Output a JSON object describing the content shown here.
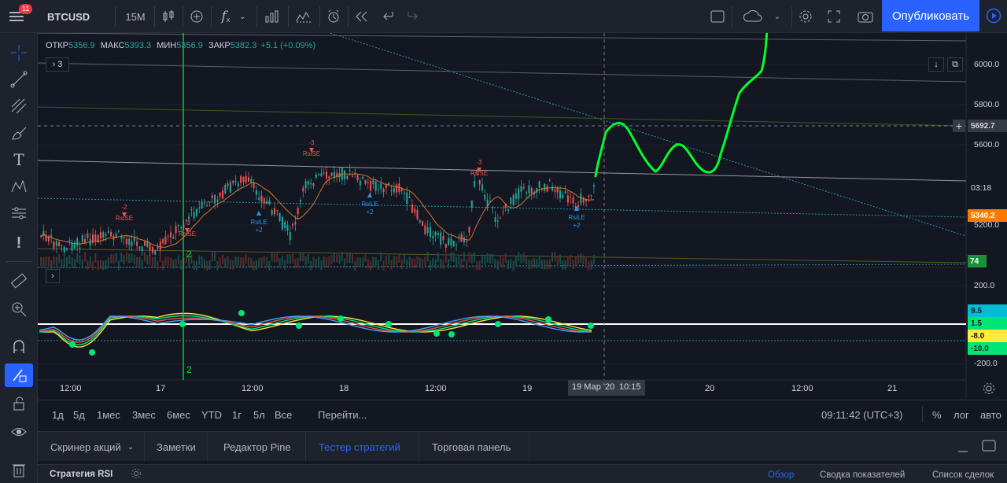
{
  "header": {
    "menu_badge": "11",
    "symbol": "BTCUSD",
    "interval": "15M",
    "publish_label": "Опубликовать"
  },
  "legend": {
    "open_label": "ОТКР",
    "open": "5356.9",
    "high_label": "МАКС",
    "high": "5393.3",
    "low_label": "МИН",
    "low": "5356.9",
    "close_label": "ЗАКР",
    "close": "5382.3",
    "change": "+5.1 (+0.09%)",
    "indicators_count": "3"
  },
  "price_axis": {
    "labels": [
      "6000.0",
      "5800.0",
      "5600.0",
      "5200.0"
    ],
    "cursor_price": "5692.7",
    "countdown": "03:18",
    "last_price": "5340.2",
    "volume_tag": "74",
    "osc_labels": [
      "200.0",
      "-200.0"
    ],
    "osc_tags": [
      "9.5",
      "1.5",
      "-8.0",
      "-10.0"
    ]
  },
  "time_axis": {
    "labels": [
      "12:00",
      "17",
      "12:00",
      "18",
      "12:00",
      "19",
      "20",
      "12:00",
      "21"
    ],
    "cursor_date": "19 Мар '20",
    "cursor_time": "10:15"
  },
  "chart_data": {
    "type": "line",
    "title": "",
    "series": [
      {
        "name": "",
        "x": [
          "17",
          "18",
          "19",
          "20",
          "21"
        ],
        "values": [
          5280,
          5520,
          5480,
          5692.7,
          6100
        ]
      }
    ],
    "signals": [
      "RsiSE",
      "RsiSE",
      "RsiSE",
      "RsiSE",
      "RsiLE",
      "RsiLE",
      "RsiLE"
    ],
    "signal_counts": [
      "-2",
      "-3",
      "-3",
      "-3",
      "+2",
      "+2",
      "+2"
    ],
    "marker": "2",
    "ylim": [
      5100,
      6150
    ]
  },
  "ranges": [
    "1д",
    "5д",
    "1мес",
    "3мес",
    "6мес",
    "YTD",
    "1г",
    "5л",
    "Все"
  ],
  "goto_label": "Перейти...",
  "clock": "09:11:42 (UTC+3)",
  "scale_opts": [
    "%",
    "лог",
    "авто"
  ],
  "tabs": [
    "Скринер акций",
    "Заметки",
    "Редактор Pine",
    "Тестер стратегий",
    "Торговая панель"
  ],
  "strategy": {
    "name": "Стратегия RSI",
    "links": [
      "Обзор",
      "Сводка показателей",
      "Список сделок"
    ]
  },
  "colors": {
    "accent": "#2962ff",
    "up": "#26a69a",
    "down": "#ef5350",
    "drawing": "#00ff2a"
  }
}
